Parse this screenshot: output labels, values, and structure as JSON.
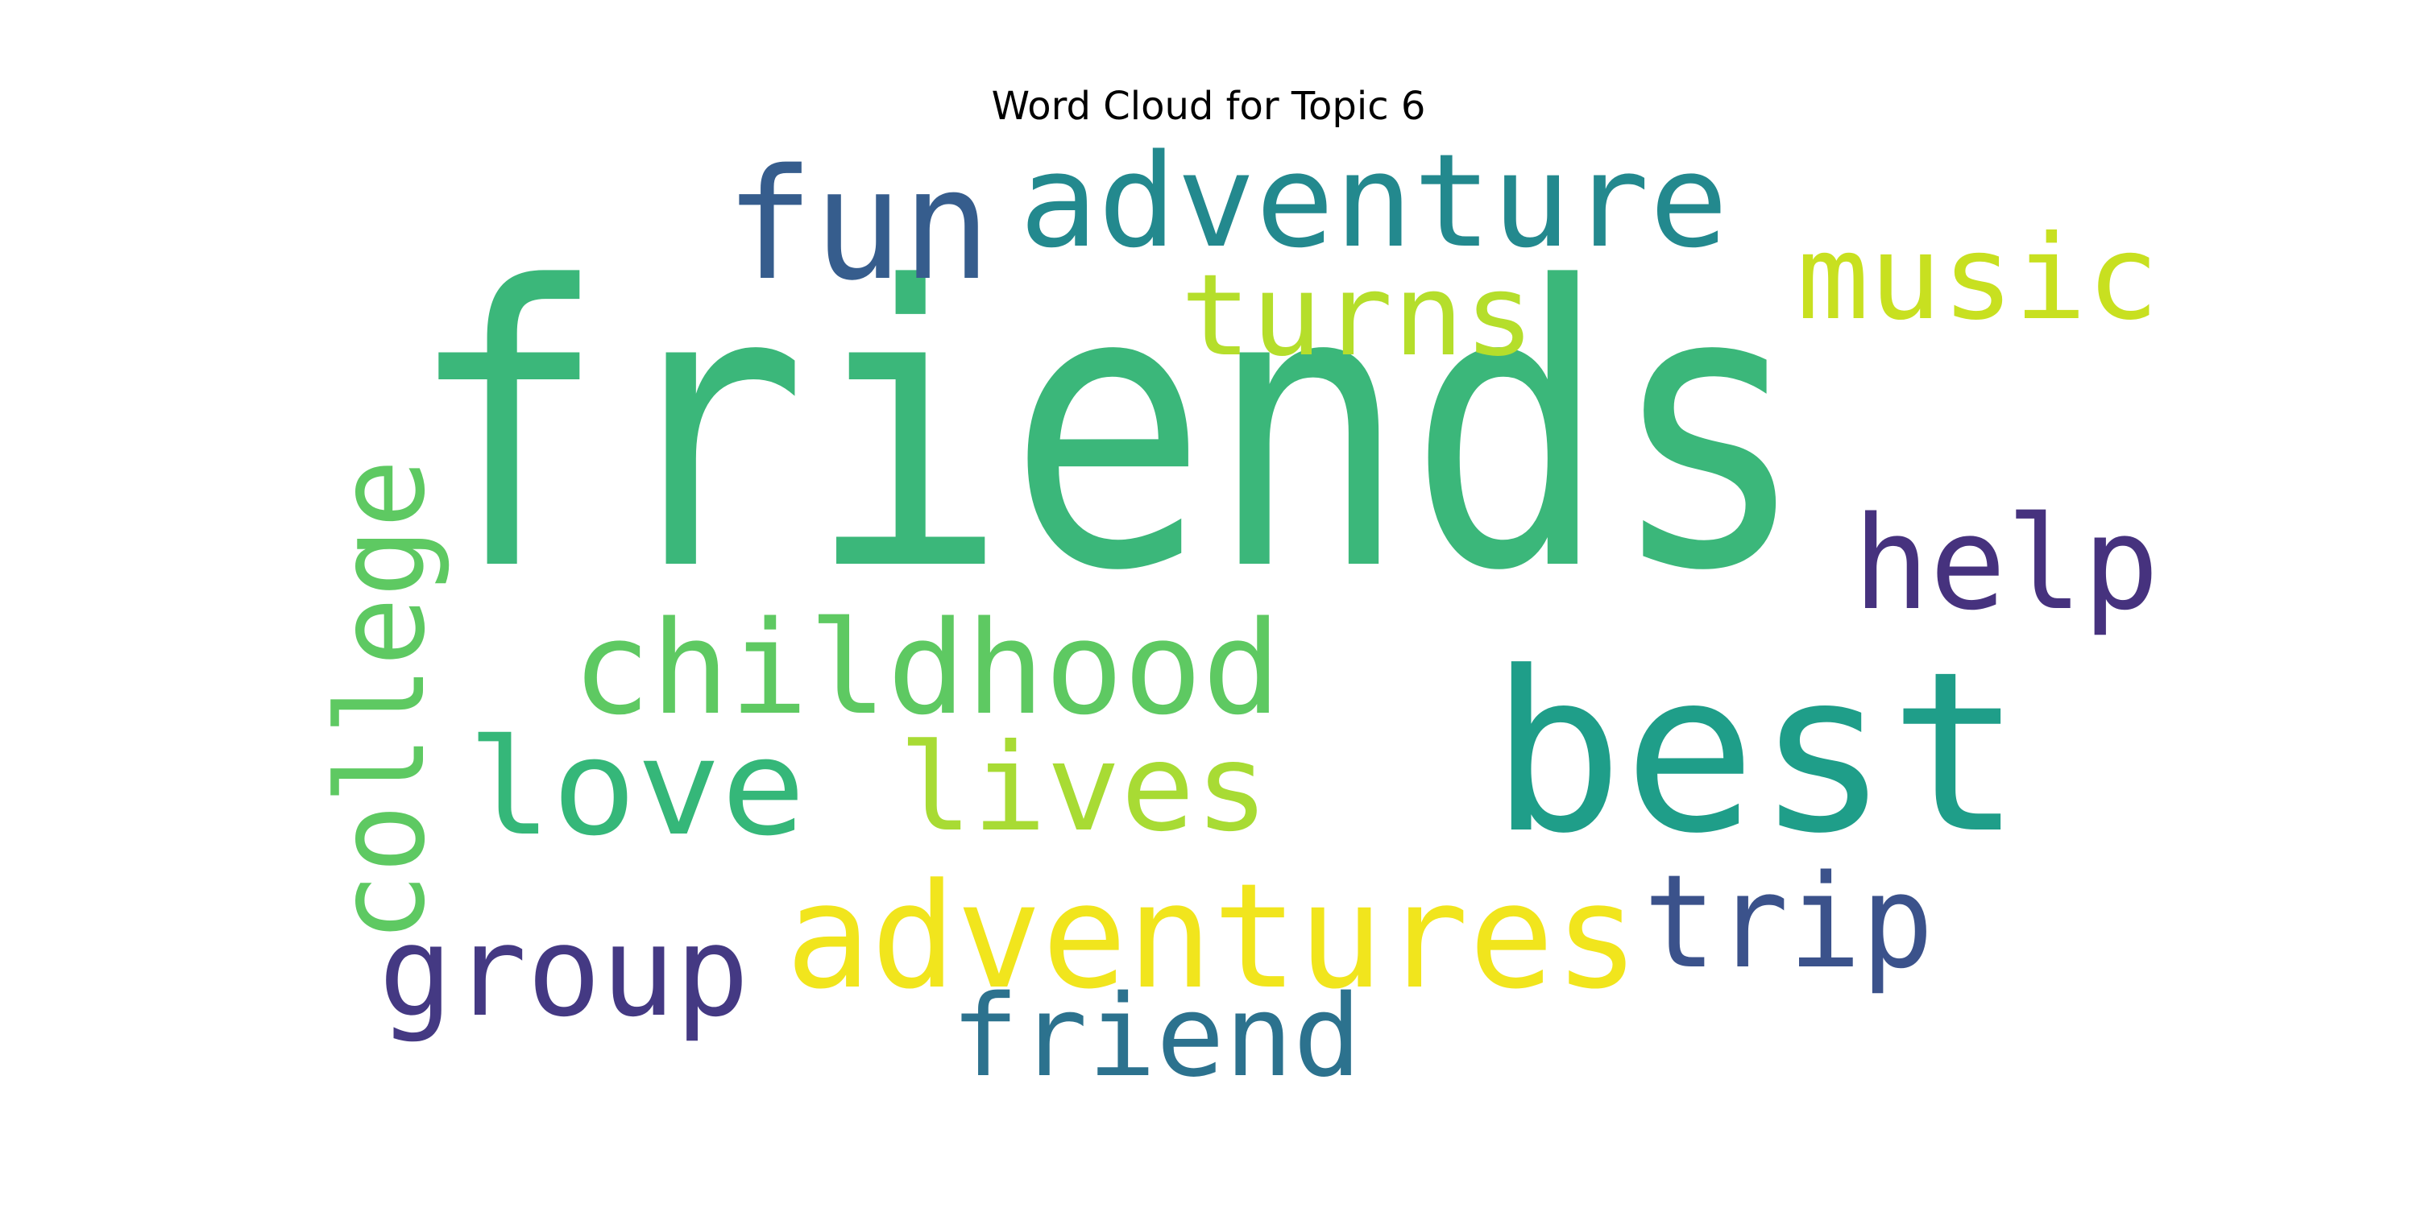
{
  "chart_data": {
    "type": "wordcloud",
    "title": "Word Cloud for Topic 6",
    "words": [
      {
        "text": "friends",
        "color": "#3bb77a"
      },
      {
        "text": "best",
        "color": "#1f9e89"
      },
      {
        "text": "fun",
        "color": "#365d8d"
      },
      {
        "text": "adventure",
        "color": "#23898e"
      },
      {
        "text": "music",
        "color": "#c8e020"
      },
      {
        "text": "turns",
        "color": "#b5de2b"
      },
      {
        "text": "help",
        "color": "#46327e"
      },
      {
        "text": "college",
        "color": "#5ec962"
      },
      {
        "text": "childhood",
        "color": "#5ec962"
      },
      {
        "text": "love",
        "color": "#35b779"
      },
      {
        "text": "lives",
        "color": "#a8db34"
      },
      {
        "text": "adventures",
        "color": "#f1e51d"
      },
      {
        "text": "trip",
        "color": "#3b528b"
      },
      {
        "text": "group",
        "color": "#443983"
      },
      {
        "text": "friend",
        "color": "#2c728e"
      }
    ]
  }
}
